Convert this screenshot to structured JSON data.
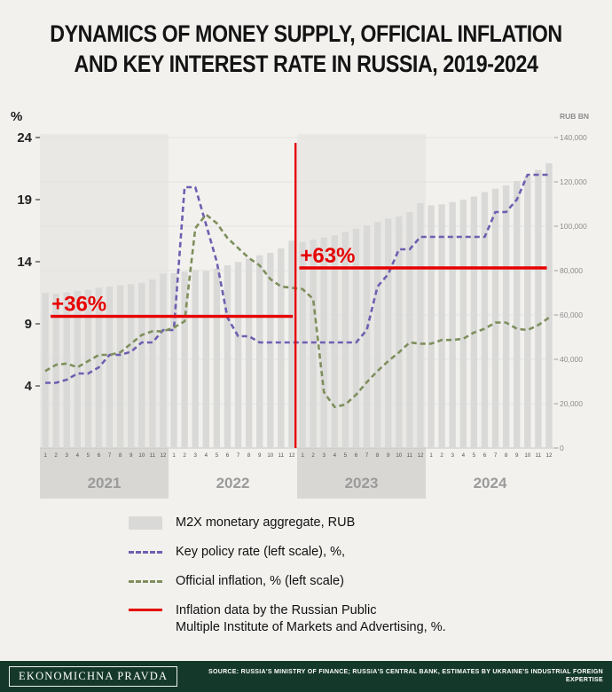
{
  "title": {
    "line1": "DYNAMICS OF MONEY SUPPLY, OFFICIAL INFLATION",
    "line2": "AND KEY INTEREST RATE IN RUSSIA, 2019-2024"
  },
  "chart_data": {
    "type": "combo-bar-line",
    "left_axis": {
      "label": "%",
      "ticks": [
        24,
        19,
        14,
        9,
        4
      ],
      "range": [
        -1,
        24
      ]
    },
    "right_axis": {
      "label": "RUB BN",
      "tick_labels": [
        "140,000",
        "120,000",
        "100,000",
        "80,000",
        "60,000",
        "40,000",
        "20,000",
        "0"
      ],
      "tick_values": [
        140000,
        120000,
        100000,
        80000,
        60000,
        40000,
        20000,
        0
      ],
      "range": [
        0,
        140000
      ]
    },
    "x": {
      "years": [
        "2021",
        "2022",
        "2023",
        "2024"
      ],
      "month_labels": [
        "1",
        "2",
        "3",
        "4",
        "5",
        "6",
        "7",
        "8",
        "9",
        "10",
        "11",
        "12"
      ],
      "shaded_years": [
        "2021",
        "2023"
      ]
    },
    "series": [
      {
        "name": "M2X monetary aggregate, RUB",
        "type": "bar",
        "axis": "right",
        "color": "#d9d9d8",
        "values": [
          70000,
          69600,
          70200,
          70800,
          71300,
          72300,
          72800,
          73400,
          73900,
          74500,
          76000,
          78600,
          78900,
          79500,
          80300,
          79900,
          80900,
          82400,
          83900,
          85400,
          86900,
          88000,
          90000,
          93500,
          92900,
          93900,
          94900,
          95900,
          97400,
          98900,
          100400,
          101900,
          103400,
          104400,
          106400,
          110400,
          109400,
          109900,
          110900,
          111900,
          113400,
          115400,
          116900,
          118400,
          120400,
          122400,
          125400,
          128400
        ]
      },
      {
        "name": "Key policy rate (left scale), %",
        "type": "line",
        "dashed": true,
        "axis": "left",
        "color": "#6e5fb0",
        "values": [
          4.25,
          4.25,
          4.5,
          5,
          5,
          5.5,
          6.5,
          6.5,
          6.75,
          7.5,
          7.5,
          8.5,
          8.5,
          20,
          20,
          17,
          14,
          9.5,
          8,
          8,
          7.5,
          7.5,
          7.5,
          7.5,
          7.5,
          7.5,
          7.5,
          7.5,
          7.5,
          7.5,
          8.5,
          12,
          13,
          15,
          15,
          16,
          16,
          16,
          16,
          16,
          16,
          16,
          18,
          18,
          19,
          21,
          21,
          21
        ]
      },
      {
        "name": "Official inflation, % (left scale)",
        "type": "line",
        "dashed": true,
        "axis": "left",
        "color": "#7e8f5c",
        "values": [
          5.2,
          5.7,
          5.8,
          5.5,
          6,
          6.5,
          6.5,
          6.7,
          7.4,
          8.1,
          8.4,
          8.4,
          8.7,
          9.2,
          16.7,
          17.8,
          17.1,
          15.9,
          15.1,
          14.3,
          13.7,
          12.6,
          12,
          11.9,
          11.8,
          11,
          3.5,
          2.3,
          2.5,
          3.3,
          4.3,
          5.2,
          6,
          6.7,
          7.5,
          7.4,
          7.4,
          7.7,
          7.7,
          7.8,
          8.3,
          8.6,
          9.1,
          9.1,
          8.6,
          8.5,
          8.9,
          9.5
        ]
      }
    ],
    "annotations": [
      {
        "kind": "hline",
        "label": "+36%",
        "value": 9.6,
        "span_months": [
          1,
          23.6
        ],
        "color": "#e60000"
      },
      {
        "kind": "hline",
        "label": "+63%",
        "value": 13.5,
        "span_months": [
          24.2,
          47.3
        ],
        "color": "#e60000"
      },
      {
        "kind": "vline",
        "at_month": 23.85,
        "color": "#e60000"
      }
    ]
  },
  "legend": {
    "items": [
      {
        "swatch": "bar",
        "color": "#d9d9d8",
        "label": "M2X monetary aggregate, RUB"
      },
      {
        "swatch": "dashed",
        "color": "#6e5fb0",
        "label": "Key policy rate (left scale), %,"
      },
      {
        "swatch": "dashed",
        "color": "#7e8f5c",
        "label": "Official inflation, % (left scale)"
      },
      {
        "swatch": "solid",
        "color": "#e60000",
        "label": "Inflation data by the Russian Public\nMultiple Institute of Markets and Advertising, %."
      }
    ]
  },
  "footer": {
    "brand": "EKONOMICHNA PRAVDA",
    "source": "SOURCE: RUSSIA'S MINISTRY OF FINANCE; RUSSIA'S CENTRAL BANK, ESTIMATES BY UKRAINE'S INDUSTRIAL FOREIGN EXPERTISE"
  }
}
